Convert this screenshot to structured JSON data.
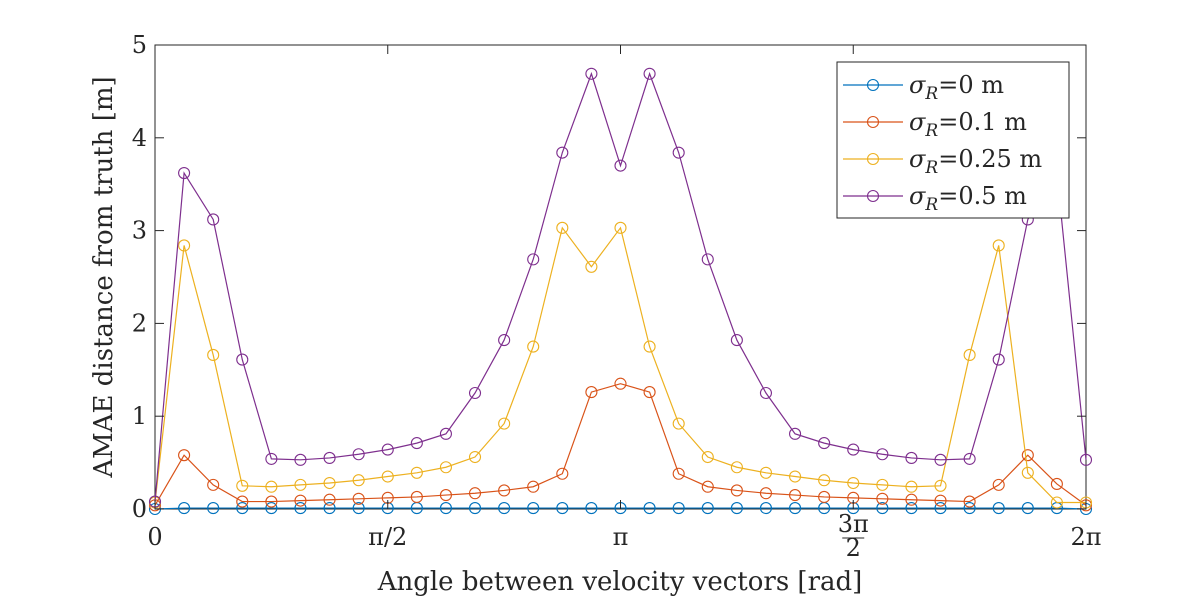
{
  "chart_data": {
    "type": "line",
    "xlabel": "Angle between velocity vectors [rad]",
    "ylabel": "AMAE distance from truth [m]",
    "xlim": [
      0,
      6.2832
    ],
    "ylim": [
      0,
      5
    ],
    "yticks": [
      0,
      1,
      2,
      3,
      4,
      5
    ],
    "xticks": [
      {
        "value": 0,
        "label": "0"
      },
      {
        "value": 1.5708,
        "label": "π/2"
      },
      {
        "value": 3.1416,
        "label": "π"
      },
      {
        "value": 4.7124,
        "label": "3π/2"
      },
      {
        "value": 6.2832,
        "label": "2π"
      }
    ],
    "legend_position": "top-right",
    "grid": false,
    "x": [
      0,
      0.1963,
      0.3927,
      0.589,
      0.7854,
      0.9817,
      1.1781,
      1.3744,
      1.5708,
      1.7671,
      1.9635,
      2.1598,
      2.3562,
      2.5525,
      2.7489,
      2.9452,
      3.1416,
      3.3379,
      3.5343,
      3.7306,
      3.927,
      4.1233,
      4.3197,
      4.516,
      4.7124,
      4.9087,
      5.1051,
      5.3014,
      5.4978,
      5.6941,
      5.8905,
      6.0868,
      6.2832
    ],
    "series": [
      {
        "name": "σ_R=0 m",
        "color": "#0072BD",
        "values": [
          0.0,
          0.01,
          0.01,
          0.01,
          0.01,
          0.01,
          0.01,
          0.01,
          0.01,
          0.01,
          0.01,
          0.01,
          0.01,
          0.01,
          0.01,
          0.01,
          0.01,
          0.01,
          0.01,
          0.01,
          0.01,
          0.01,
          0.01,
          0.01,
          0.01,
          0.01,
          0.01,
          0.01,
          0.01,
          0.01,
          0.01,
          0.01,
          0.0
        ]
      },
      {
        "name": "σ_R=0.1 m",
        "color": "#D95319",
        "values": [
          0.04,
          0.58,
          0.26,
          0.08,
          0.08,
          0.09,
          0.1,
          0.11,
          0.12,
          0.13,
          0.15,
          0.17,
          0.2,
          0.24,
          0.38,
          1.26,
          1.35,
          1.26,
          0.38,
          0.24,
          0.2,
          0.17,
          0.15,
          0.13,
          0.12,
          0.11,
          0.1,
          0.09,
          0.08,
          0.26,
          0.58,
          0.27,
          0.04
        ]
      },
      {
        "name": "σ_R=0.25 m",
        "color": "#EDB120",
        "values": [
          0.07,
          2.84,
          1.66,
          0.25,
          0.24,
          0.26,
          0.28,
          0.31,
          0.35,
          0.39,
          0.45,
          0.56,
          0.92,
          1.75,
          3.03,
          2.61,
          3.03,
          1.75,
          0.92,
          0.56,
          0.45,
          0.39,
          0.35,
          0.31,
          0.28,
          0.26,
          0.24,
          0.25,
          1.66,
          2.84,
          0.39,
          0.07,
          0.07
        ]
      },
      {
        "name": "σ_R=0.5 m",
        "color": "#7E2F8E",
        "values": [
          0.08,
          3.62,
          3.12,
          1.61,
          0.54,
          0.53,
          0.55,
          0.59,
          0.64,
          0.71,
          0.81,
          1.25,
          1.82,
          2.69,
          3.84,
          4.69,
          3.7,
          4.69,
          3.84,
          2.69,
          1.82,
          1.25,
          0.81,
          0.71,
          0.64,
          0.59,
          0.55,
          0.53,
          0.54,
          1.61,
          3.12,
          3.62,
          0.53
        ]
      }
    ]
  }
}
